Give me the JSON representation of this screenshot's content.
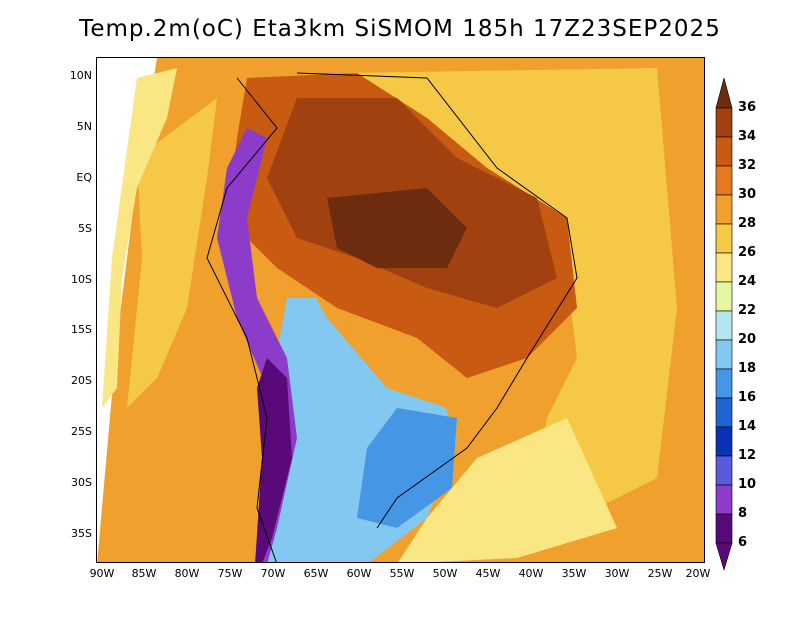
{
  "title": "Temp.2m(oC) Eta3km SiSMOM 185h 17Z23SEP2025",
  "lat_labels": [
    "10N",
    "5N",
    "EQ",
    "5S",
    "10S",
    "15S",
    "20S",
    "25S",
    "30S",
    "35S"
  ],
  "lon_labels": [
    "90W",
    "85W",
    "80W",
    "75W",
    "70W",
    "65W",
    "60W",
    "55W",
    "50W",
    "45W",
    "40W",
    "35W",
    "30W",
    "25W",
    "20W"
  ],
  "colorbar": {
    "levels": [
      "36",
      "34",
      "32",
      "30",
      "28",
      "26",
      "24",
      "22",
      "20",
      "18",
      "16",
      "14",
      "12",
      "10",
      "8",
      "6"
    ],
    "colors": [
      "#6e2c0e",
      "#a0410f",
      "#c85a12",
      "#e6781e",
      "#f0a02d",
      "#f5c846",
      "#fae682",
      "#e6f5a0",
      "#b4e6f0",
      "#82c8f0",
      "#4696e6",
      "#1e64d2",
      "#0a32b4",
      "#5a5adc",
      "#8c3cc8",
      "#5a0a78"
    ]
  },
  "map": {
    "ocean_warm": "#f0a02d",
    "ocean_mild": "#f5c846",
    "ocean_cool": "#fae682",
    "land_hot": "#a0410f",
    "land_hotter": "#6e2c0e",
    "land_warm": "#c85a12",
    "andes_cold": "#5a0a78"
  }
}
